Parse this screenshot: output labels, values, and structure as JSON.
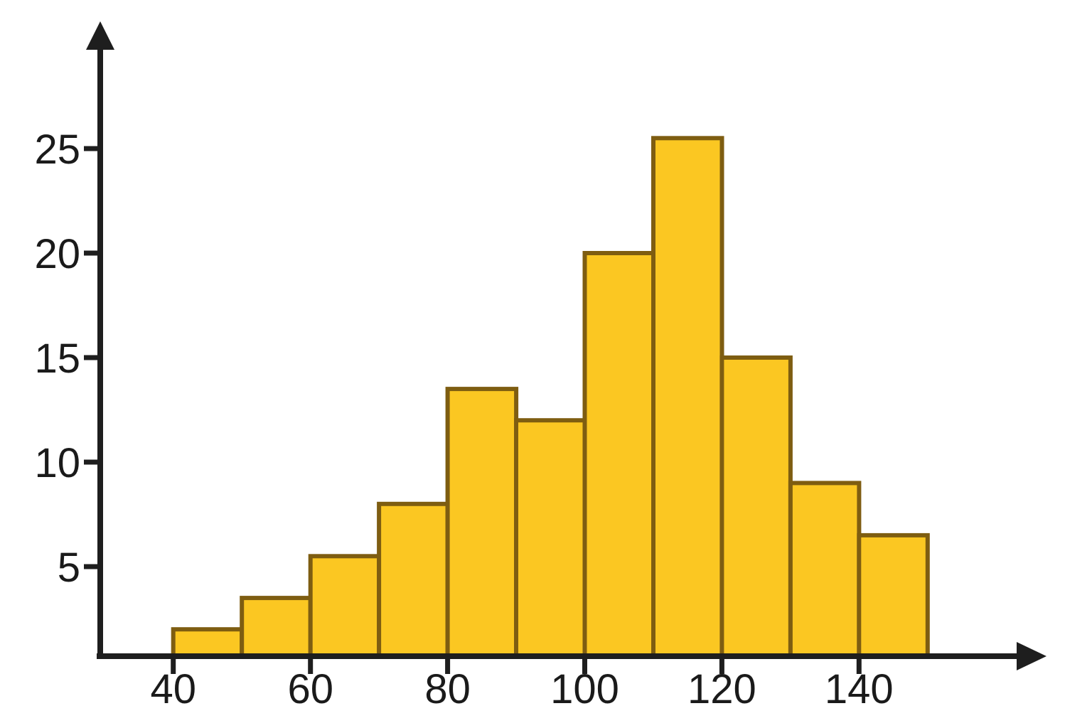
{
  "page": {
    "background": "#FFFFFF"
  },
  "chart_data": {
    "type": "bar",
    "variant": "histogram",
    "title": "",
    "xlabel": "",
    "ylabel": "",
    "bin_width": 10,
    "bins": {
      "edges": [
        40,
        50,
        60,
        70,
        80,
        90,
        100,
        110,
        120,
        130,
        140,
        150
      ],
      "values": [
        2,
        3.5,
        5.5,
        8,
        13.5,
        12,
        20,
        25.5,
        15,
        9,
        6.5
      ]
    },
    "x_ticks": [
      "40",
      "60",
      "80",
      "100",
      "120",
      "140"
    ],
    "x_tick_values": [
      40,
      60,
      80,
      100,
      120,
      140
    ],
    "y_ticks": [
      "5",
      "10",
      "15",
      "20",
      "25"
    ],
    "y_tick_values": [
      5,
      10,
      15,
      20,
      25
    ],
    "xlim": [
      29,
      168
    ],
    "ylim": [
      0,
      30
    ],
    "grid": false,
    "legend": false,
    "axis_arrows": true,
    "colors": {
      "bar_fill": "#FBC722",
      "bar_border": "#7E5D11",
      "axis": "#1E1E1E",
      "label": "#1A1A1A",
      "background": "#FFFFFF"
    }
  }
}
